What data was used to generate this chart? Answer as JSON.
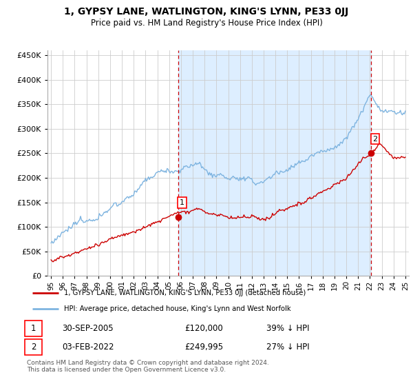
{
  "title": "1, GYPSY LANE, WATLINGTON, KING'S LYNN, PE33 0JJ",
  "subtitle": "Price paid vs. HM Land Registry's House Price Index (HPI)",
  "legend_line1": "1, GYPSY LANE, WATLINGTON, KING'S LYNN, PE33 0JJ (detached house)",
  "legend_line2": "HPI: Average price, detached house, King's Lynn and West Norfolk",
  "footnote": "Contains HM Land Registry data © Crown copyright and database right 2024.\nThis data is licensed under the Open Government Licence v3.0.",
  "transaction1_date": "30-SEP-2005",
  "transaction1_price": "£120,000",
  "transaction1_hpi": "39% ↓ HPI",
  "transaction2_date": "03-FEB-2022",
  "transaction2_price": "£249,995",
  "transaction2_hpi": "27% ↓ HPI",
  "hpi_color": "#7eb4e0",
  "hpi_fill_color": "#ddeeff",
  "price_color": "#cc0000",
  "dashed_color": "#cc0000",
  "ylim": [
    0,
    460000
  ],
  "yticks": [
    0,
    50000,
    100000,
    150000,
    200000,
    250000,
    300000,
    350000,
    400000,
    450000
  ],
  "marker1_x": 2005.75,
  "marker1_y": 120000,
  "marker2_x": 2022.08,
  "marker2_y": 249995,
  "vline1_x": 2005.75,
  "vline2_x": 2022.08,
  "xlim_left": 1994.7,
  "xlim_right": 2025.3,
  "background_color": "#ffffff",
  "grid_color": "#cccccc",
  "shade_color": "#ddeeff"
}
